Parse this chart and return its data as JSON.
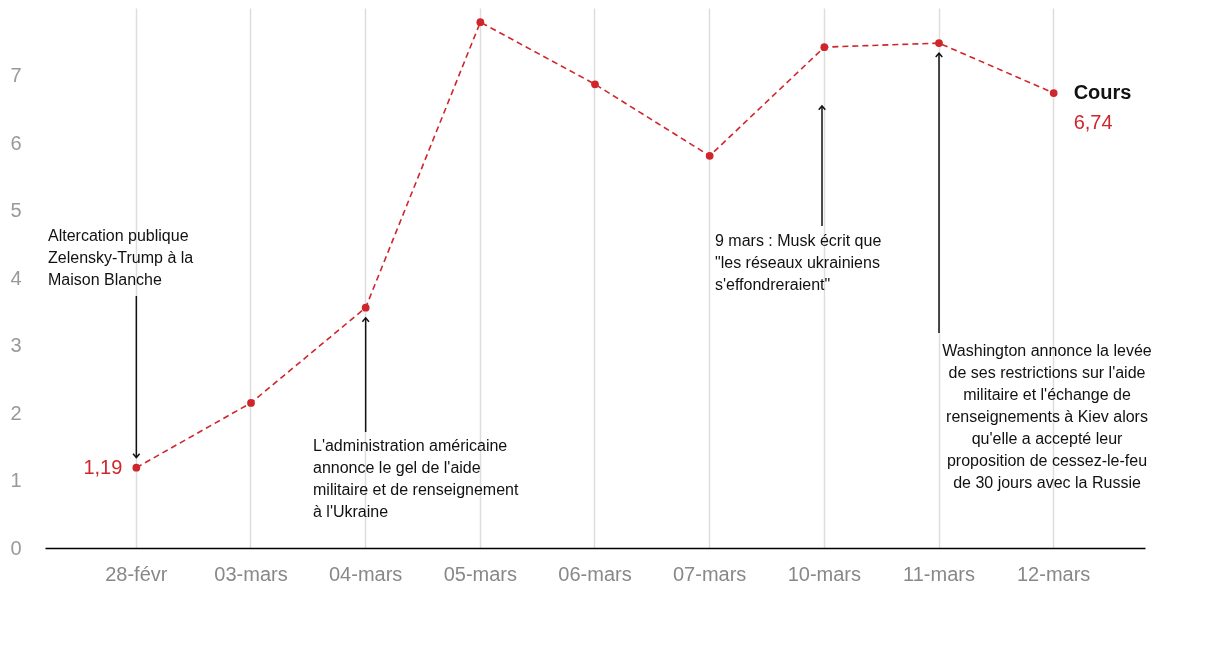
{
  "chart_data": {
    "type": "line",
    "categories": [
      "28-févr",
      "03-mars",
      "04-mars",
      "05-mars",
      "06-mars",
      "07-mars",
      "10-mars",
      "11-mars",
      "12-mars"
    ],
    "series": [
      {
        "name": "Cours",
        "color": "#d0262b",
        "values": [
          1.19,
          2.15,
          3.56,
          7.79,
          6.87,
          5.81,
          7.42,
          7.48,
          6.74
        ],
        "value_labels": [
          "1,19",
          null,
          null,
          null,
          null,
          null,
          null,
          null,
          "6,74"
        ]
      }
    ],
    "ylim": [
      0,
      8
    ],
    "yticks": [
      0,
      1,
      2,
      3,
      4,
      5,
      6,
      7
    ],
    "grid": "x",
    "marker": "circle",
    "line_style": "dashed",
    "annotations": [
      "Altercation publique\nZelensky-Trump à la\nMaison Blanche",
      "L'administration américaine\nannonce le gel de l'aide\nmilitaire et de renseignement\nà l'Ukraine",
      "9 mars : Musk écrit que\n\"les réseaux ukrainiens\ns'effondreraient\"",
      "Washington annonce la levée\nde ses restrictions sur l'aide\nmilitaire et l'échange de\nrenseignements à Kiev alors\nqu'elle a accepté leur\nproposition de cessez-le-feu\nde 30 jours avec la Russie"
    ]
  }
}
